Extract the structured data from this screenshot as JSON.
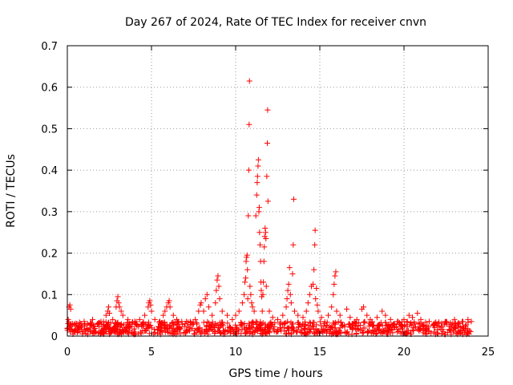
{
  "chart_data": {
    "type": "scatter",
    "title": "Day 267 of 2024, Rate Of TEC Index for receiver cnvn",
    "xlabel": "GPS time / hours",
    "ylabel": "ROTI / TECUs",
    "xlim": [
      0,
      25
    ],
    "ylim": [
      0,
      0.7
    ],
    "xticks": [
      "0",
      "5",
      "10",
      "15",
      "20",
      "25"
    ],
    "yticks": [
      "0",
      "0.1",
      "0.2",
      "0.3",
      "0.4",
      "0.5",
      "0.6",
      "0.7"
    ],
    "grid": true,
    "marker": "plus",
    "color": "#ff0000",
    "series": [
      {
        "points": [
          [
            0.05,
            0.04
          ],
          [
            0.1,
            0.07
          ],
          [
            0.15,
            0.075
          ],
          [
            0.2,
            0.065
          ],
          [
            0.3,
            0.03
          ],
          [
            0.5,
            0.025
          ],
          [
            0.8,
            0.03
          ],
          [
            1.0,
            0.035
          ],
          [
            1.2,
            0.03
          ],
          [
            1.5,
            0.04
          ],
          [
            1.8,
            0.03
          ],
          [
            2.0,
            0.035
          ],
          [
            2.3,
            0.05
          ],
          [
            2.4,
            0.06
          ],
          [
            2.45,
            0.07
          ],
          [
            2.5,
            0.055
          ],
          [
            2.7,
            0.04
          ],
          [
            2.9,
            0.07
          ],
          [
            2.95,
            0.085
          ],
          [
            3.0,
            0.095
          ],
          [
            3.05,
            0.08
          ],
          [
            3.1,
            0.07
          ],
          [
            3.2,
            0.06
          ],
          [
            3.3,
            0.05
          ],
          [
            3.6,
            0.04
          ],
          [
            4.0,
            0.035
          ],
          [
            4.3,
            0.04
          ],
          [
            4.6,
            0.05
          ],
          [
            4.8,
            0.07
          ],
          [
            4.85,
            0.08
          ],
          [
            4.9,
            0.085
          ],
          [
            4.95,
            0.075
          ],
          [
            5.0,
            0.06
          ],
          [
            5.2,
            0.04
          ],
          [
            5.5,
            0.035
          ],
          [
            5.7,
            0.05
          ],
          [
            5.8,
            0.06
          ],
          [
            5.9,
            0.07
          ],
          [
            6.0,
            0.08
          ],
          [
            6.05,
            0.085
          ],
          [
            6.1,
            0.07
          ],
          [
            6.3,
            0.05
          ],
          [
            6.5,
            0.04
          ],
          [
            6.8,
            0.035
          ],
          [
            7.0,
            0.03
          ],
          [
            7.3,
            0.035
          ],
          [
            7.6,
            0.04
          ],
          [
            7.8,
            0.06
          ],
          [
            7.9,
            0.075
          ],
          [
            7.95,
            0.08
          ],
          [
            8.1,
            0.06
          ],
          [
            8.2,
            0.09
          ],
          [
            8.3,
            0.1
          ],
          [
            8.4,
            0.07
          ],
          [
            8.6,
            0.05
          ],
          [
            8.8,
            0.08
          ],
          [
            8.85,
            0.11
          ],
          [
            8.9,
            0.135
          ],
          [
            8.95,
            0.145
          ],
          [
            9.0,
            0.12
          ],
          [
            9.05,
            0.09
          ],
          [
            9.2,
            0.06
          ],
          [
            9.5,
            0.05
          ],
          [
            9.8,
            0.04
          ],
          [
            10.0,
            0.05
          ],
          [
            10.2,
            0.06
          ],
          [
            10.4,
            0.08
          ],
          [
            10.5,
            0.1
          ],
          [
            10.55,
            0.13
          ],
          [
            10.6,
            0.14
          ],
          [
            10.62,
            0.18
          ],
          [
            10.65,
            0.19
          ],
          [
            10.68,
            0.195
          ],
          [
            10.7,
            0.16
          ],
          [
            10.72,
            0.09
          ],
          [
            10.75,
            0.29
          ],
          [
            10.78,
            0.4
          ],
          [
            10.8,
            0.51
          ],
          [
            10.82,
            0.615
          ],
          [
            10.85,
            0.12
          ],
          [
            10.9,
            0.1
          ],
          [
            10.95,
            0.08
          ],
          [
            11.0,
            0.07
          ],
          [
            11.1,
            0.06
          ],
          [
            11.2,
            0.29
          ],
          [
            11.25,
            0.34
          ],
          [
            11.28,
            0.37
          ],
          [
            11.3,
            0.385
          ],
          [
            11.33,
            0.41
          ],
          [
            11.35,
            0.425
          ],
          [
            11.38,
            0.3
          ],
          [
            11.4,
            0.31
          ],
          [
            11.42,
            0.25
          ],
          [
            11.45,
            0.22
          ],
          [
            11.48,
            0.18
          ],
          [
            11.5,
            0.13
          ],
          [
            11.52,
            0.11
          ],
          [
            11.55,
            0.095
          ],
          [
            11.58,
            0.06
          ],
          [
            11.62,
            0.1
          ],
          [
            11.65,
            0.13
          ],
          [
            11.68,
            0.18
          ],
          [
            11.7,
            0.215
          ],
          [
            11.72,
            0.24
          ],
          [
            11.75,
            0.26
          ],
          [
            11.78,
            0.25
          ],
          [
            11.8,
            0.235
          ],
          [
            11.82,
            0.12
          ],
          [
            11.85,
            0.385
          ],
          [
            11.88,
            0.465
          ],
          [
            11.9,
            0.545
          ],
          [
            11.92,
            0.325
          ],
          [
            12.0,
            0.06
          ],
          [
            12.2,
            0.045
          ],
          [
            12.5,
            0.04
          ],
          [
            12.8,
            0.05
          ],
          [
            13.0,
            0.07
          ],
          [
            13.05,
            0.09
          ],
          [
            13.1,
            0.11
          ],
          [
            13.15,
            0.125
          ],
          [
            13.2,
            0.165
          ],
          [
            13.25,
            0.1
          ],
          [
            13.3,
            0.08
          ],
          [
            13.38,
            0.15
          ],
          [
            13.42,
            0.22
          ],
          [
            13.45,
            0.33
          ],
          [
            13.5,
            0.06
          ],
          [
            13.7,
            0.05
          ],
          [
            14.0,
            0.045
          ],
          [
            14.2,
            0.06
          ],
          [
            14.3,
            0.08
          ],
          [
            14.4,
            0.1
          ],
          [
            14.5,
            0.12
          ],
          [
            14.6,
            0.125
          ],
          [
            14.65,
            0.16
          ],
          [
            14.7,
            0.22
          ],
          [
            14.72,
            0.255
          ],
          [
            14.75,
            0.09
          ],
          [
            14.8,
            0.115
          ],
          [
            14.85,
            0.075
          ],
          [
            14.9,
            0.06
          ],
          [
            15.1,
            0.045
          ],
          [
            15.5,
            0.05
          ],
          [
            15.7,
            0.07
          ],
          [
            15.8,
            0.1
          ],
          [
            15.85,
            0.125
          ],
          [
            15.9,
            0.145
          ],
          [
            15.95,
            0.155
          ],
          [
            16.0,
            0.06
          ],
          [
            16.2,
            0.05
          ],
          [
            16.6,
            0.065
          ],
          [
            16.8,
            0.045
          ],
          [
            17.2,
            0.04
          ],
          [
            17.5,
            0.065
          ],
          [
            17.6,
            0.07
          ],
          [
            17.8,
            0.05
          ],
          [
            18.0,
            0.04
          ],
          [
            18.4,
            0.045
          ],
          [
            18.7,
            0.06
          ],
          [
            18.9,
            0.05
          ],
          [
            19.2,
            0.04
          ],
          [
            19.6,
            0.035
          ],
          [
            20.0,
            0.04
          ],
          [
            20.3,
            0.05
          ],
          [
            20.5,
            0.045
          ],
          [
            20.8,
            0.055
          ],
          [
            21.0,
            0.04
          ],
          [
            21.5,
            0.035
          ],
          [
            22.0,
            0.03
          ],
          [
            22.5,
            0.035
          ],
          [
            23.0,
            0.04
          ],
          [
            23.5,
            0.035
          ],
          [
            23.8,
            0.04
          ],
          [
            24.0,
            0.035
          ]
        ],
        "baseline": {
          "x_range": [
            0.0,
            24.0
          ],
          "y_range": [
            0.0,
            0.035
          ]
        }
      }
    ]
  }
}
